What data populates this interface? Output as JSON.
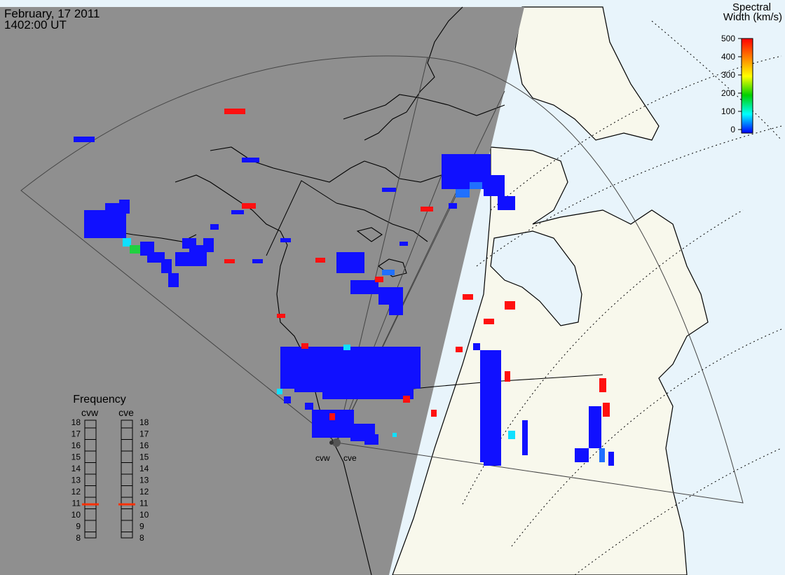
{
  "header": {
    "date": "February, 17 2011",
    "time": "1402:00 UT"
  },
  "colorbar": {
    "title_line1": "Spectral",
    "title_line2": "Width (km/s)",
    "ticks": [
      "500",
      "400",
      "300",
      "200",
      "100",
      "0"
    ],
    "colors": [
      "#ff0000",
      "#ff8000",
      "#ffff00",
      "#00d000",
      "#00ffff",
      "#0000ff"
    ]
  },
  "frequency_panel": {
    "title": "Frequency",
    "columns": [
      "cvw",
      "cve"
    ],
    "ticks": [
      "18",
      "17",
      "16",
      "15",
      "14",
      "13",
      "12",
      "11",
      "10",
      "9",
      "8"
    ],
    "cvw_mhz": 10.9,
    "cve_mhz": 10.9,
    "marker_color": "#ff3000"
  },
  "radar_sites": {
    "west": "cvw",
    "east": "cve"
  },
  "colors": {
    "night": "#8f8f8f",
    "land_day": "#f8f8ec",
    "water_day": "#e8f4fb",
    "echo_low": "#1010ff"
  }
}
